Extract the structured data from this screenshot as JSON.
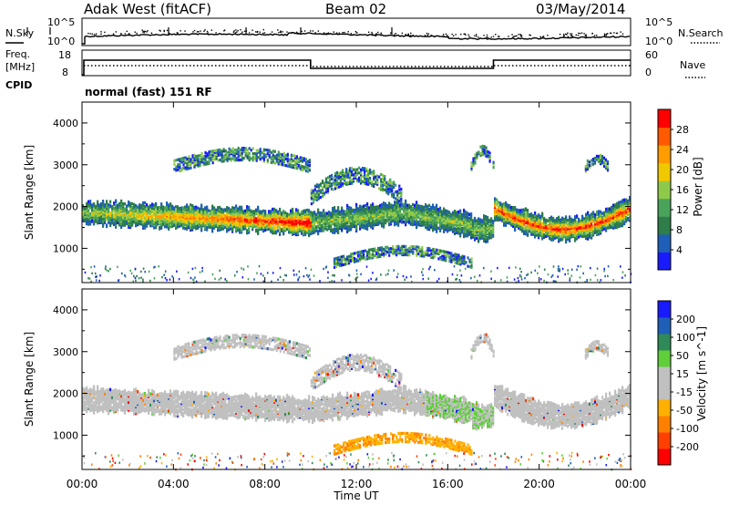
{
  "header": {
    "station": "Adak West (fitACF)",
    "beam": "Beam 02",
    "date": "03/May/2014"
  },
  "noise_panel": {
    "left_label": "N.Sky",
    "right_label": "N.Search",
    "left_ticks": [
      "10^5",
      "10^0"
    ],
    "right_ticks": [
      "10^5",
      "10^0"
    ]
  },
  "freq_panel": {
    "left_label_1": "Freq.",
    "left_label_2": "[MHz]",
    "left_label_3": "CPID",
    "right_label": "Nave",
    "left_ticks": [
      "18",
      "8"
    ],
    "right_ticks": [
      "60",
      "0"
    ],
    "cpid_text": "normal (fast) 151 RF"
  },
  "colors": {
    "power_scale": [
      "#1a1aff",
      "#1f5fb8",
      "#2e7d4a",
      "#4aa35a",
      "#8fc94a",
      "#f0c800",
      "#ff9c00",
      "#ff5a00",
      "#ff0000"
    ],
    "velocity_scale": [
      "#1a1aff",
      "#1f5fb8",
      "#2e8b57",
      "#5fcf3a",
      "#c0c0c0",
      "#c0c0c0",
      "#ffb000",
      "#ff8000",
      "#ff4000",
      "#ff0000"
    ],
    "background_scatter": "#c0c0c0"
  },
  "chart_data": [
    {
      "type": "heatmap",
      "name": "power",
      "ylabel": "Slant Range [km]",
      "yticks": [
        "1000",
        "2000",
        "3000",
        "4000"
      ],
      "colorbar_label": "Power [dB]",
      "colorbar_ticks": [
        "4",
        "8",
        "12",
        "16",
        "20",
        "24",
        "28"
      ],
      "ylim": [
        180,
        4500
      ],
      "xlim": [
        0,
        24
      ]
    },
    {
      "type": "heatmap",
      "name": "velocity",
      "ylabel": "Slant Range [km]",
      "yticks": [
        "1000",
        "2000",
        "3000",
        "4000"
      ],
      "colorbar_label": "Velocity [m s^-1]",
      "colorbar_ticks": [
        "200",
        "100",
        "50",
        "15",
        "-15",
        "-50",
        "-100",
        "-200"
      ],
      "ylim": [
        180,
        4500
      ],
      "xlim": [
        0,
        24
      ]
    }
  ],
  "xaxis": {
    "ticks": [
      "00:00",
      "04:00",
      "08:00",
      "12:00",
      "16:00",
      "20:00",
      "00:00"
    ],
    "label": "Time UT"
  }
}
